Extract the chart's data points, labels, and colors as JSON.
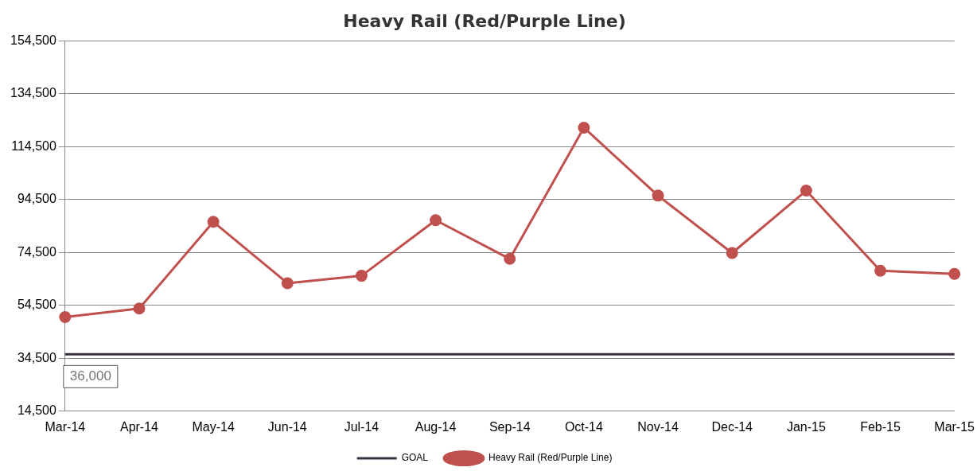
{
  "chart_data": {
    "type": "line",
    "title": "Heavy Rail (Red/Purple Line)",
    "categories": [
      "Mar-14",
      "Apr-14",
      "May-14",
      "Jun-14",
      "Jul-14",
      "Aug-14",
      "Sep-14",
      "Oct-14",
      "Nov-14",
      "Dec-14",
      "Jan-15",
      "Feb-15",
      "Mar-15"
    ],
    "series": [
      {
        "name": "GOAL",
        "color": "#3a3040",
        "marker": "none",
        "values": [
          36000,
          36000,
          36000,
          36000,
          36000,
          36000,
          36000,
          36000,
          36000,
          36000,
          36000,
          36000,
          36000
        ],
        "value_labels": [
          "36,000",
          null,
          null,
          null,
          null,
          null,
          null,
          null,
          null,
          null,
          null,
          null,
          null
        ]
      },
      {
        "name": "Heavy Rail (Red/Purple Line)",
        "color": "#c0504d",
        "marker": "circle",
        "values": [
          50100,
          53300,
          86100,
          62900,
          65700,
          86700,
          72100,
          121700,
          96000,
          74300,
          97900,
          67600,
          66400
        ]
      }
    ],
    "ylim": [
      14500,
      154500
    ],
    "yticks": [
      {
        "value": 14500,
        "label": "14,500"
      },
      {
        "value": 34500,
        "label": "34,500"
      },
      {
        "value": 54500,
        "label": "54,500"
      },
      {
        "value": 74500,
        "label": "74,500"
      },
      {
        "value": 94500,
        "label": "94,500"
      },
      {
        "value": 114500,
        "label": "114,500"
      },
      {
        "value": 134500,
        "label": "134,500"
      },
      {
        "value": 154500,
        "label": "154,500"
      }
    ],
    "grid": "y",
    "legend": "bottom",
    "line_style": "solid"
  }
}
